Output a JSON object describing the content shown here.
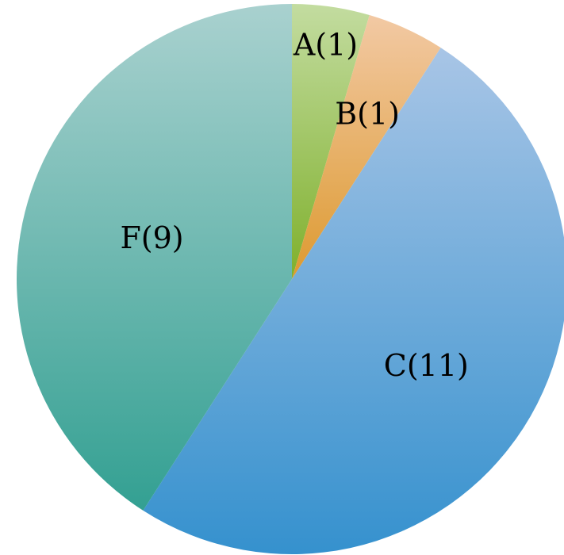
{
  "chart_data": {
    "type": "pie",
    "slices": [
      {
        "label": "A(1)",
        "category": "A",
        "value": 1,
        "color_top": "#c3dca0",
        "color_bottom": "#7fb02c"
      },
      {
        "label": "B(1)",
        "category": "B",
        "value": 1,
        "color_top": "#f2c9a4",
        "color_bottom": "#dd9a30"
      },
      {
        "label": "C(11)",
        "category": "C",
        "value": 11,
        "color_top": "#a8c5e6",
        "color_bottom": "#3591ce"
      },
      {
        "label": "F(9)",
        "category": "F",
        "value": 9,
        "color_top": "#a9d1cf",
        "color_bottom": "#33a092"
      }
    ],
    "start_angle_deg": 0,
    "direction": "clockwise",
    "legend": "none",
    "title": ""
  }
}
